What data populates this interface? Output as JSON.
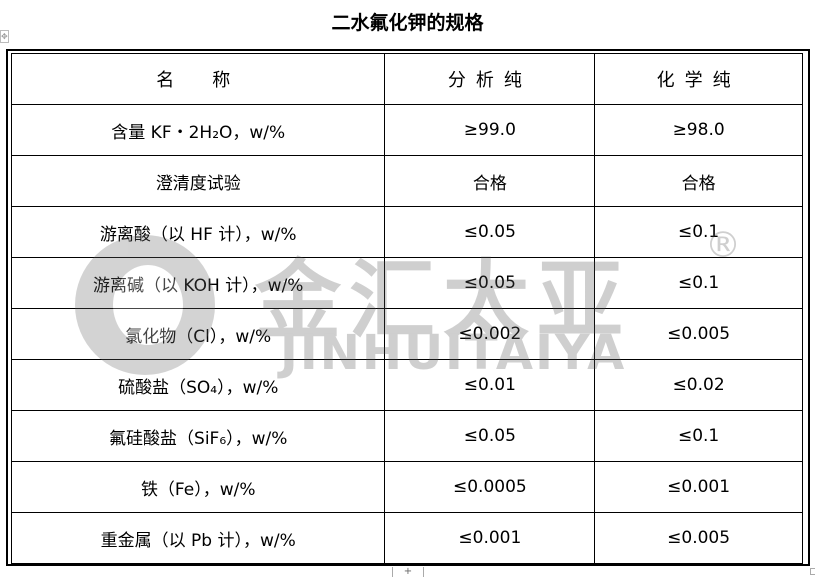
{
  "document": {
    "title": "二水氟化钾的规格",
    "table": {
      "headers": [
        "名　称",
        "分析纯",
        "化学纯"
      ],
      "rows": [
        [
          "含量 KF・2H₂O，w/%",
          "≥99.0",
          "≥98.0"
        ],
        [
          "澄清度试验",
          "合格",
          "合格"
        ],
        [
          "游离酸（以 HF 计），w/%",
          "≤0.05",
          "≤0.1"
        ],
        [
          "游离碱（以 KOH 计），w/%",
          "≤0.05",
          "≤0.1"
        ],
        [
          "氯化物（Cl），w/%",
          "≤0.002",
          "≤0.005"
        ],
        [
          "硫酸盐（SO₄），w/%",
          "≤0.01",
          "≤0.02"
        ],
        [
          "氟硅酸盐（SiF₆），w/%",
          "≤0.05",
          "≤0.1"
        ],
        [
          "铁（Fe），w/%",
          "≤0.0005",
          "≤0.001"
        ],
        [
          "重金属（以 Pb 计），w/%",
          "≤0.001",
          "≤0.005"
        ]
      ]
    },
    "watermark": {
      "cn": "金汇太亚",
      "en": "JINHUITAIYA",
      "mark": "®"
    }
  },
  "controls": {
    "add_row": "+",
    "move_handle": "✥"
  }
}
